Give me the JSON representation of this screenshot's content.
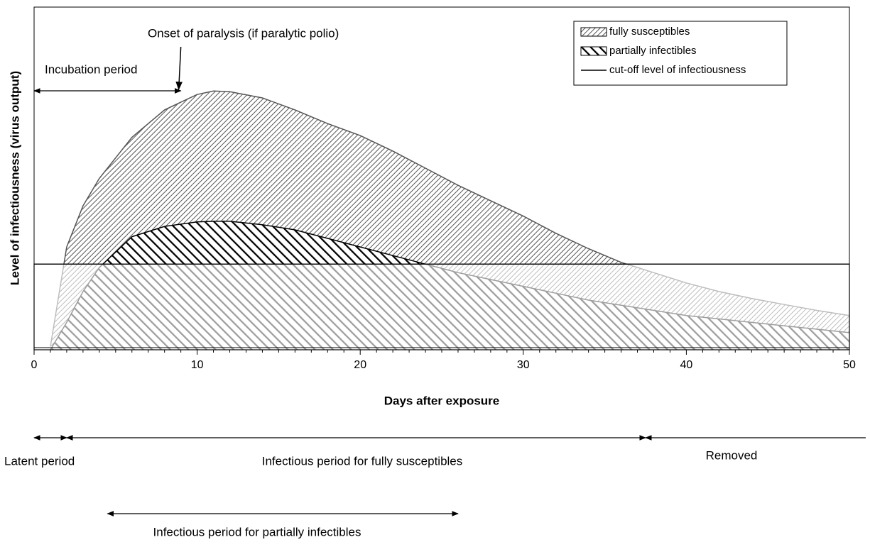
{
  "chart_data": {
    "type": "area",
    "x_label": "Days after exposure",
    "y_label": "Level of infectiousness (virus output)",
    "x": [
      1,
      2,
      3,
      4,
      6,
      8,
      10,
      11,
      12,
      14,
      16,
      18,
      20,
      22,
      24,
      26,
      28,
      30,
      32,
      34,
      36,
      38,
      40,
      42,
      44,
      46,
      48,
      50
    ],
    "series": [
      {
        "name": "fully susceptibles",
        "color": "#555555",
        "pattern": "fine",
        "values": [
          1,
          30,
          42,
          50,
          62,
          70,
          74.5,
          75.5,
          75.3,
          73.5,
          70,
          66,
          62.5,
          58,
          53,
          48,
          43.5,
          39,
          34,
          29.5,
          25.5,
          22.5,
          19.5,
          17,
          15,
          13.2,
          11.5,
          10
        ]
      },
      {
        "name": "partially infectibles",
        "color": "#000000",
        "pattern": "bold",
        "values": [
          0,
          8,
          17,
          24,
          33,
          36,
          37.3,
          37.5,
          37.5,
          36.5,
          35,
          32.5,
          30,
          27.5,
          25,
          22.5,
          20.5,
          18.5,
          16.5,
          14.5,
          13,
          11.5,
          10,
          9,
          8,
          7,
          6,
          5
        ]
      }
    ],
    "cutoff": {
      "name": "cut-off level of infectiousness",
      "value": 25
    },
    "xlim": [
      0,
      50
    ],
    "xticks": [
      0,
      10,
      20,
      30,
      40,
      50
    ],
    "ylim": [
      0,
      100
    ],
    "legend": "upper right",
    "annotations": [
      {
        "text": "Onset of paralysis (if paralytic polio)",
        "x": 9
      },
      {
        "text": "Incubation period",
        "x_start": 0,
        "x_end": 9
      },
      {
        "text": "Latent period",
        "x_start": 0,
        "x_end": 2
      },
      {
        "text": "Infectious period for fully susceptibles",
        "x_start": 2,
        "x_end": 37.5
      },
      {
        "text": "Removed",
        "x_start": 37.5,
        "x_end": 51
      },
      {
        "text": "Infectious period for partially infectibles",
        "x_start": 4.5,
        "x_end": 26
      }
    ]
  }
}
